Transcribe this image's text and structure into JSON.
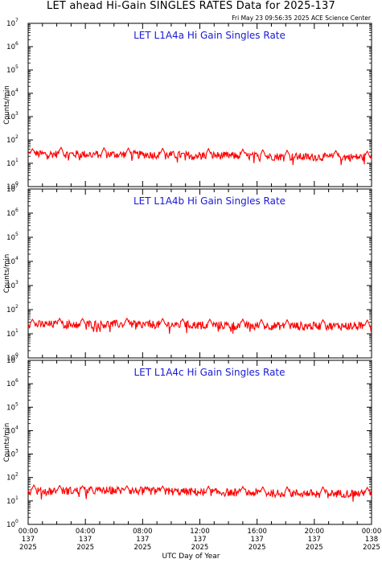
{
  "header": {
    "title": "LET ahead Hi-Gain SINGLES RATES Data for 2025-137",
    "timestamp": "Fri May 23 09:56:35 2025 ACE Science Center"
  },
  "axes": {
    "xlabel": "UTC Day of Year",
    "ylabel": "Counts/min"
  },
  "colors": {
    "series": "#ff0000",
    "panel_title": "#1a1ad6"
  },
  "chart_data": [
    {
      "type": "line",
      "title": "LET L1A4a Hi Gain Singles Rate",
      "ylabel": "Counts/min",
      "xlabel": "UTC Day of Year",
      "yscale": "log",
      "ylim": [
        1,
        10000000
      ],
      "xlim": [
        0,
        24
      ],
      "baseline": [
        [
          0,
          25
        ],
        [
          6,
          24
        ],
        [
          12,
          22
        ],
        [
          18,
          19
        ],
        [
          24,
          18
        ]
      ],
      "spikes": [
        {
          "x": 0.3,
          "y": 42
        },
        {
          "x": 2.3,
          "y": 48
        },
        {
          "x": 5.3,
          "y": 46
        },
        {
          "x": 7.0,
          "y": 45
        },
        {
          "x": 9.4,
          "y": 44
        },
        {
          "x": 12.6,
          "y": 42
        },
        {
          "x": 15.0,
          "y": 40
        },
        {
          "x": 16.4,
          "y": 38
        },
        {
          "x": 18.1,
          "y": 36
        },
        {
          "x": 21.5,
          "y": 35
        },
        {
          "x": 23.7,
          "y": 33
        }
      ]
    },
    {
      "type": "line",
      "title": "LET L1A4b Hi Gain Singles Rate",
      "ylabel": "Counts/min",
      "xlabel": "UTC Day of Year",
      "yscale": "log",
      "ylim": [
        1,
        10000000
      ],
      "xlim": [
        0,
        24
      ],
      "baseline": [
        [
          0,
          24
        ],
        [
          6,
          25
        ],
        [
          12,
          23
        ],
        [
          18,
          21
        ],
        [
          24,
          21
        ]
      ],
      "spikes": [
        {
          "x": 0.3,
          "y": 40
        },
        {
          "x": 2.2,
          "y": 44
        },
        {
          "x": 3.8,
          "y": 43
        },
        {
          "x": 6.9,
          "y": 44
        },
        {
          "x": 9.4,
          "y": 43
        },
        {
          "x": 10.8,
          "y": 41
        },
        {
          "x": 12.7,
          "y": 40
        },
        {
          "x": 15.0,
          "y": 40
        },
        {
          "x": 16.3,
          "y": 39
        },
        {
          "x": 18.1,
          "y": 38
        },
        {
          "x": 20.6,
          "y": 38
        },
        {
          "x": 23.7,
          "y": 37
        }
      ]
    },
    {
      "type": "line",
      "title": "LET L1A4c Hi Gain Singles Rate",
      "ylabel": "Counts/min",
      "xlabel": "UTC Day of Year",
      "yscale": "log",
      "ylim": [
        1,
        10000000
      ],
      "xlim": [
        0,
        24
      ],
      "baseline": [
        [
          0,
          26
        ],
        [
          6,
          28
        ],
        [
          12,
          24
        ],
        [
          18,
          21
        ],
        [
          24,
          21
        ]
      ],
      "spikes": [
        {
          "x": 0.4,
          "y": 48
        },
        {
          "x": 2.2,
          "y": 46
        },
        {
          "x": 3.8,
          "y": 44
        },
        {
          "x": 6.9,
          "y": 44
        },
        {
          "x": 9.4,
          "y": 43
        },
        {
          "x": 12.6,
          "y": 42
        },
        {
          "x": 15.0,
          "y": 41
        },
        {
          "x": 16.4,
          "y": 40
        },
        {
          "x": 18.1,
          "y": 40
        },
        {
          "x": 20.6,
          "y": 40
        },
        {
          "x": 23.7,
          "y": 38
        }
      ]
    }
  ],
  "y_ticks": [
    {
      "base": "10",
      "exp": "0"
    },
    {
      "base": "10",
      "exp": "1"
    },
    {
      "base": "10",
      "exp": "2"
    },
    {
      "base": "10",
      "exp": "3"
    },
    {
      "base": "10",
      "exp": "4"
    },
    {
      "base": "10",
      "exp": "5"
    },
    {
      "base": "10",
      "exp": "6"
    },
    {
      "base": "10",
      "exp": "7"
    }
  ],
  "x_ticks": [
    {
      "time": "00:00",
      "doy": "137",
      "year": "2025"
    },
    {
      "time": "04:00",
      "doy": "137",
      "year": "2025"
    },
    {
      "time": "08:00",
      "doy": "137",
      "year": "2025"
    },
    {
      "time": "12:00",
      "doy": "137",
      "year": "2025"
    },
    {
      "time": "16:00",
      "doy": "137",
      "year": "2025"
    },
    {
      "time": "20:00",
      "doy": "137",
      "year": "2025"
    },
    {
      "time": "00:00",
      "doy": "138",
      "year": "2025"
    }
  ]
}
